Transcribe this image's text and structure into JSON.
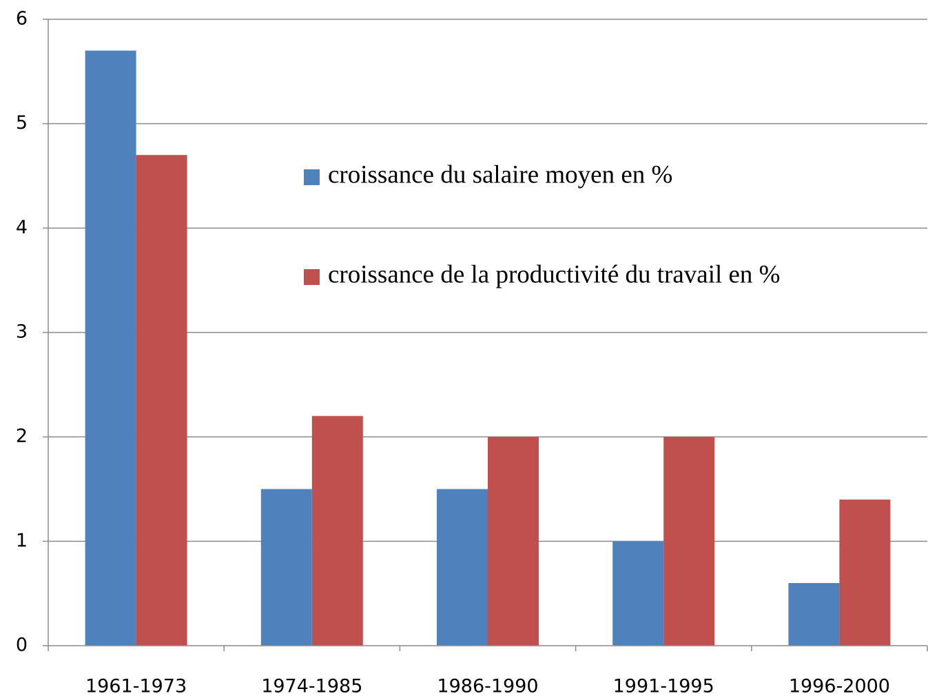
{
  "chart_data": {
    "type": "bar",
    "categories": [
      "1961-1973",
      "1974-1985",
      "1986-1990",
      "1991-1995",
      "1996-2000"
    ],
    "series": [
      {
        "name": "croissance du salaire moyen en %",
        "color": "#4f81bd",
        "values": [
          5.7,
          1.5,
          1.5,
          1,
          0.6
        ]
      },
      {
        "name": "croissance de la productivité du travail en %",
        "color": "#c0504d",
        "values": [
          4.7,
          2.2,
          2,
          2,
          1.4
        ]
      }
    ],
    "ylim": [
      0,
      6
    ],
    "yticks": [
      0,
      1,
      2,
      3,
      4,
      5,
      6
    ],
    "grid": true
  }
}
